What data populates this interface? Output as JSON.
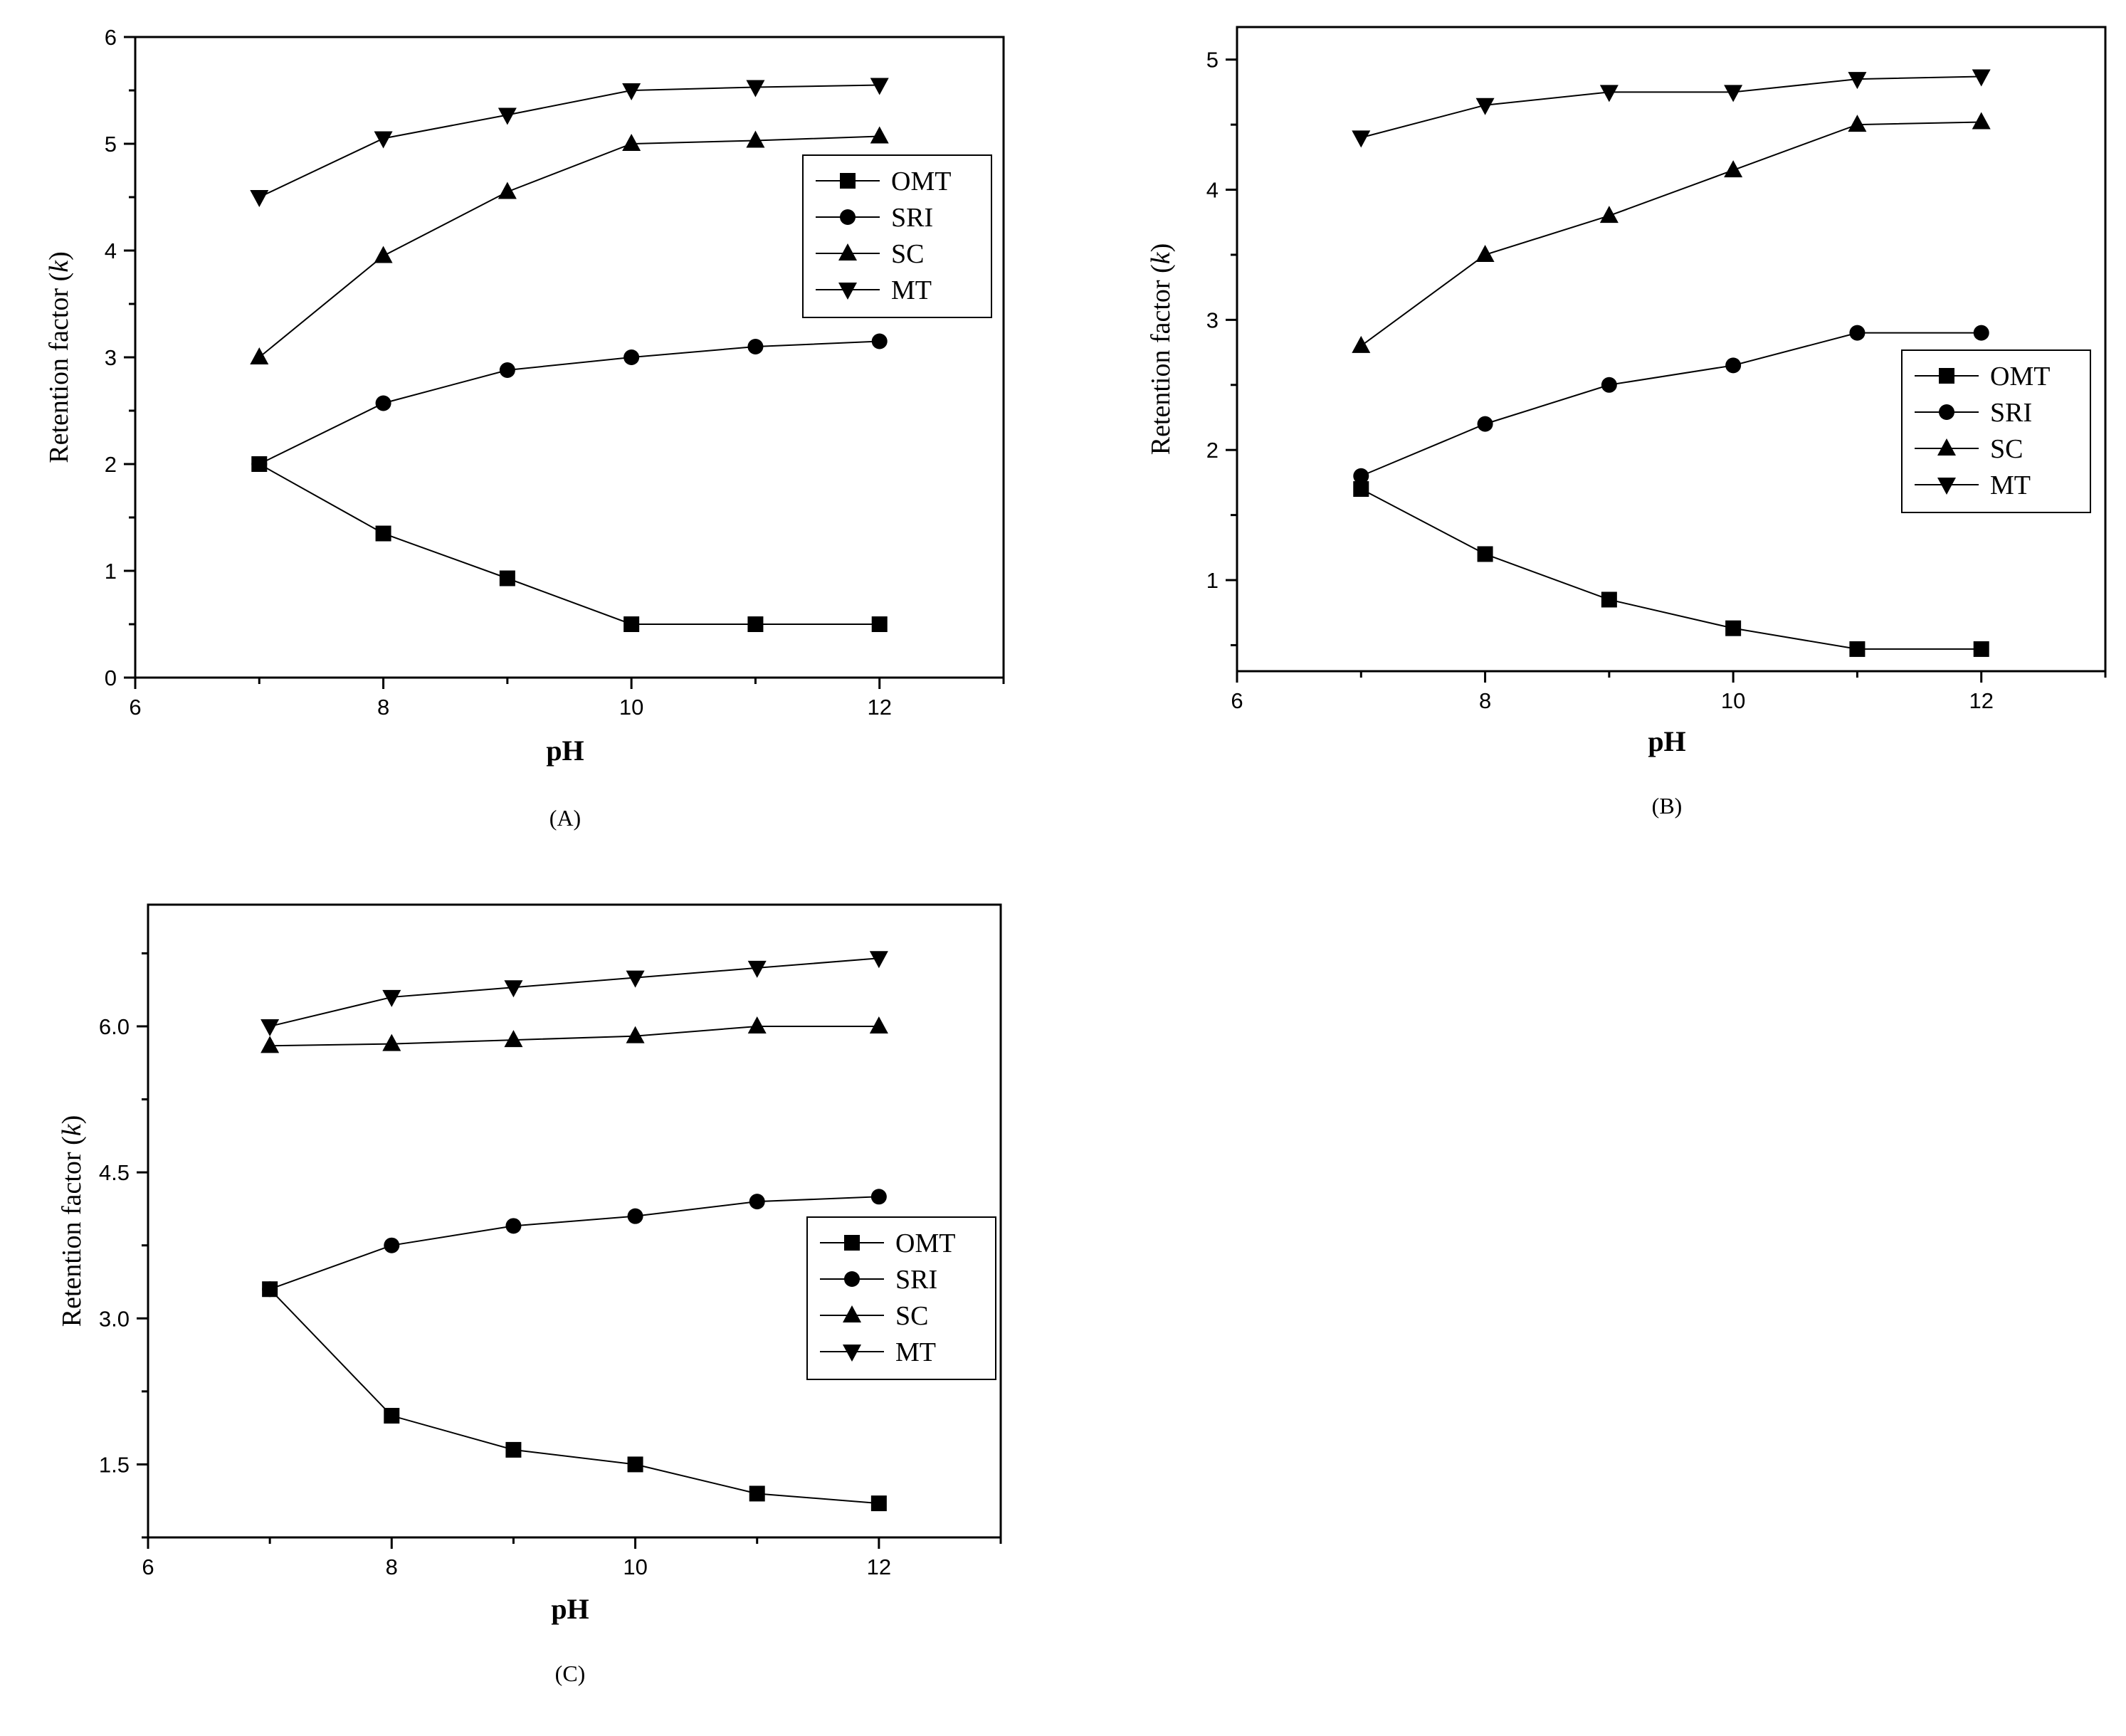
{
  "chart_data": [
    {
      "type": "line",
      "panel_label": "(A)",
      "xlabel": "pH",
      "ylabel_prefix": "Retention factor (",
      "ylabel_k": "k",
      "ylabel_suffix": ")",
      "xlim": [
        6,
        13
      ],
      "ylim": [
        0,
        6
      ],
      "xticks": [
        6,
        8,
        10,
        12
      ],
      "xtick_labels": [
        "6",
        "8",
        "10",
        "12"
      ],
      "yticks": [
        0,
        1,
        2,
        3,
        4,
        5,
        6
      ],
      "ytick_labels": [
        "0",
        "1",
        "2",
        "3",
        "4",
        "5",
        "6"
      ],
      "legend_position": "top-right",
      "x": [
        7,
        8,
        9,
        10,
        11,
        12
      ],
      "series": [
        {
          "name": "OMT",
          "marker": "square",
          "values": [
            2.0,
            1.35,
            0.93,
            0.5,
            0.5,
            0.5
          ]
        },
        {
          "name": "SRI",
          "marker": "circle",
          "values": [
            2.0,
            2.57,
            2.88,
            3.0,
            3.1,
            3.15
          ]
        },
        {
          "name": "SC",
          "marker": "triangle-up",
          "values": [
            3.0,
            3.95,
            4.55,
            5.0,
            5.03,
            5.07
          ]
        },
        {
          "name": "MT",
          "marker": "triangle-down",
          "values": [
            4.5,
            5.05,
            5.27,
            5.5,
            5.53,
            5.55
          ]
        }
      ]
    },
    {
      "type": "line",
      "panel_label": "(B)",
      "xlabel": "pH",
      "ylabel_prefix": "Retention factor (",
      "ylabel_k": "k",
      "ylabel_suffix": ")",
      "xlim": [
        6,
        13
      ],
      "ylim": [
        0.3,
        5.25
      ],
      "xticks": [
        6,
        8,
        10,
        12
      ],
      "xtick_labels": [
        "6",
        "8",
        "10",
        "12"
      ],
      "yticks": [
        1,
        2,
        3,
        4,
        5
      ],
      "ytick_labels": [
        "1",
        "2",
        "3",
        "4",
        "5"
      ],
      "legend_position": "center-right",
      "x": [
        7,
        8,
        9,
        10,
        11,
        12
      ],
      "series": [
        {
          "name": "OMT",
          "marker": "square",
          "values": [
            1.7,
            1.2,
            0.85,
            0.63,
            0.47,
            0.47
          ]
        },
        {
          "name": "SRI",
          "marker": "circle",
          "values": [
            1.8,
            2.2,
            2.5,
            2.65,
            2.9,
            2.9
          ]
        },
        {
          "name": "SC",
          "marker": "triangle-up",
          "values": [
            2.8,
            3.5,
            3.8,
            4.15,
            4.5,
            4.52
          ]
        },
        {
          "name": "MT",
          "marker": "triangle-down",
          "values": [
            4.4,
            4.65,
            4.75,
            4.75,
            4.85,
            4.87
          ]
        }
      ]
    },
    {
      "type": "line",
      "panel_label": "(C)",
      "xlabel": "pH",
      "ylabel_prefix": "Retention factor (",
      "ylabel_k": "k",
      "ylabel_suffix": ")",
      "xlim": [
        6,
        13
      ],
      "ylim": [
        0.75,
        7.25
      ],
      "xticks": [
        6,
        8,
        10,
        12
      ],
      "xtick_labels": [
        "6",
        "8",
        "10",
        "12"
      ],
      "yticks": [
        1.5,
        3.0,
        4.5,
        6.0
      ],
      "ytick_labels": [
        "1.5",
        "3.0",
        "4.5",
        "6.0"
      ],
      "legend_position": "center-right",
      "x": [
        7,
        8,
        9,
        10,
        11,
        12
      ],
      "series": [
        {
          "name": "OMT",
          "marker": "square",
          "values": [
            3.3,
            2.0,
            1.65,
            1.5,
            1.2,
            1.1
          ]
        },
        {
          "name": "SRI",
          "marker": "circle",
          "values": [
            3.3,
            3.75,
            3.95,
            4.05,
            4.2,
            4.25
          ]
        },
        {
          "name": "SC",
          "marker": "triangle-up",
          "values": [
            5.8,
            5.82,
            5.86,
            5.9,
            6.0,
            6.0
          ]
        },
        {
          "name": "MT",
          "marker": "triangle-down",
          "values": [
            6.0,
            6.3,
            6.4,
            6.5,
            6.6,
            6.7
          ]
        }
      ]
    }
  ]
}
